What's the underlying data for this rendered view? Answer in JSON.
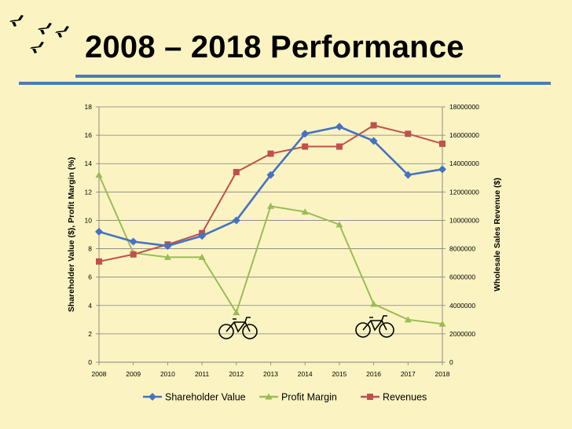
{
  "title": "2008 – 2018 Performance",
  "colors": {
    "background": "#fbf4c2",
    "rule": "#4d7bb5",
    "shareholder": "#4472c4",
    "profit": "#9bbb59",
    "revenues": "#c0504d",
    "grid": "#7f7f7f"
  },
  "decorations": {
    "bird_icons": [
      "bird-icon",
      "bird-icon",
      "bird-icon",
      "bird-icon"
    ],
    "bicycle_icons": [
      "bicycle-icon",
      "bicycle-icon"
    ]
  },
  "chart_data": {
    "type": "line",
    "x": [
      "2008",
      "2009",
      "2010",
      "2011",
      "2012",
      "2013",
      "2014",
      "2015",
      "2016",
      "2017",
      "2018"
    ],
    "y_left": {
      "label": "Shareholder Value ($), Profit Margin (%)",
      "range": [
        0,
        18
      ],
      "ticks": [
        "0",
        "2",
        "4",
        "6",
        "8",
        "10",
        "12",
        "14",
        "16",
        "18"
      ]
    },
    "y_right": {
      "label": "Wholesale Sales Revenue ($)",
      "range": [
        0,
        18000000
      ],
      "ticks": [
        "0",
        "2000000",
        "4000000",
        "6000000",
        "8000000",
        "10000000",
        "12000000",
        "14000000",
        "16000000",
        "18000000"
      ]
    },
    "grid": true,
    "legend_position": "bottom",
    "series": [
      {
        "name": "Shareholder Value",
        "axis": "left",
        "marker": "diamond",
        "color": "#4472c4",
        "values": [
          9.2,
          8.5,
          8.2,
          8.9,
          10.0,
          13.2,
          16.1,
          16.6,
          15.6,
          13.2,
          13.6
        ]
      },
      {
        "name": "Profit Margin",
        "axis": "left",
        "marker": "triangle",
        "color": "#9bbb59",
        "values": [
          13.2,
          7.7,
          7.4,
          7.4,
          3.5,
          11.0,
          10.6,
          9.7,
          4.1,
          3.0,
          2.7
        ]
      },
      {
        "name": "Revenues",
        "axis": "right",
        "marker": "square",
        "color": "#c0504d",
        "values": [
          7100000,
          7600000,
          8300000,
          9100000,
          13400000,
          14700000,
          15200000,
          15200000,
          16700000,
          16100000,
          15400000
        ]
      }
    ]
  }
}
